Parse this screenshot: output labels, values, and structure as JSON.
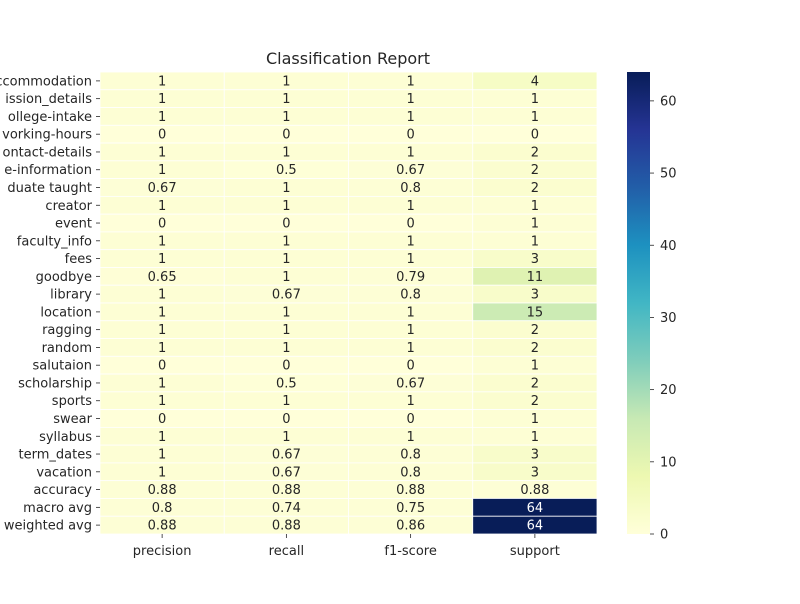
{
  "chart_data": {
    "type": "heatmap",
    "title": "Classification Report",
    "columns": [
      "precision",
      "recall",
      "f1-score",
      "support"
    ],
    "rows": [
      "ccommodation",
      "ission_details",
      "ollege-intake",
      "vorking-hours",
      "ontact-details",
      "e-information",
      "duate taught",
      "creator",
      "event",
      "faculty_info",
      "fees",
      "goodbye",
      "library",
      "location",
      "ragging",
      "random",
      "salutaion",
      "scholarship",
      "sports",
      "swear",
      "syllabus",
      "term_dates",
      "vacation",
      "accuracy",
      "macro avg",
      "weighted avg"
    ],
    "values": [
      [
        1,
        1,
        1,
        4
      ],
      [
        1,
        1,
        1,
        1
      ],
      [
        1,
        1,
        1,
        1
      ],
      [
        0,
        0,
        0,
        0
      ],
      [
        1,
        1,
        1,
        2
      ],
      [
        1,
        0.5,
        0.67,
        2
      ],
      [
        0.67,
        1,
        0.8,
        2
      ],
      [
        1,
        1,
        1,
        1
      ],
      [
        0,
        0,
        0,
        1
      ],
      [
        1,
        1,
        1,
        1
      ],
      [
        1,
        1,
        1,
        3
      ],
      [
        0.65,
        1,
        0.79,
        11
      ],
      [
        1,
        0.67,
        0.8,
        3
      ],
      [
        1,
        1,
        1,
        15
      ],
      [
        1,
        1,
        1,
        2
      ],
      [
        1,
        1,
        1,
        2
      ],
      [
        0,
        0,
        0,
        1
      ],
      [
        1,
        0.5,
        0.67,
        2
      ],
      [
        1,
        1,
        1,
        2
      ],
      [
        0,
        0,
        0,
        1
      ],
      [
        1,
        1,
        1,
        1
      ],
      [
        1,
        0.67,
        0.8,
        3
      ],
      [
        1,
        0.67,
        0.8,
        3
      ],
      [
        0.88,
        0.88,
        0.88,
        0.88
      ],
      [
        0.8,
        0.74,
        0.75,
        64
      ],
      [
        0.88,
        0.88,
        0.86,
        64
      ]
    ],
    "colormap": "YlGnBu",
    "vmin": 0,
    "vmax": 64,
    "colorbar_ticks": [
      0,
      10,
      20,
      30,
      40,
      50,
      60
    ],
    "colors": {
      "low": "#ffffd9",
      "high": "#081d58",
      "cell_border": "#ffffff"
    },
    "legend": "colorbar-right"
  }
}
